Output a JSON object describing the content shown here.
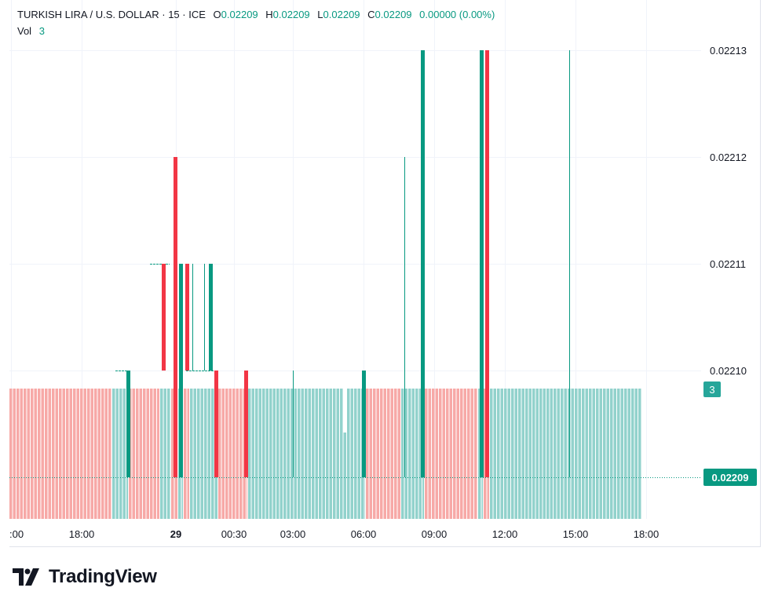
{
  "legend": {
    "symbol": "TURKISH LIRA / U.S. DOLLAR",
    "interval": "15",
    "exchange": "ICE",
    "open_label": "O",
    "open": "0.02209",
    "high_label": "H",
    "high": "0.02209",
    "low_label": "L",
    "low": "0.02209",
    "close_label": "C",
    "close": "0.02209",
    "change": "0.00000 (0.00%)",
    "vol_label": "Vol",
    "vol": "3"
  },
  "brand": {
    "name": "TradingView"
  },
  "colors": {
    "up": "#089981",
    "down": "#f23645",
    "vol_up": "#92d2cc",
    "vol_down": "#f7a9a7",
    "grid": "#f0f3fa",
    "axis_text": "#131722"
  },
  "chart_data": {
    "type": "candlestick",
    "price_axis": {
      "ticks": [
        "0.02210",
        "0.02211",
        "0.02212",
        "0.02213"
      ],
      "ylim": [
        0.02209,
        0.02213
      ]
    },
    "time_axis": {
      "ticks": [
        ":00",
        "18:00",
        "29",
        "00:30",
        "03:00",
        "06:00",
        "09:00",
        "12:00",
        "15:00",
        "18:00"
      ]
    },
    "last_price_label": "0.02209",
    "volume_label": "3",
    "candles": [
      {
        "x": 163.5,
        "o": 0.02209,
        "h": 0.0221,
        "l": 0.02209,
        "c": 0.0221
      },
      {
        "x": 208.5,
        "o": 0.02211,
        "h": 0.02211,
        "l": 0.0221,
        "c": 0.0221
      },
      {
        "x": 223.5,
        "o": 0.02212,
        "h": 0.02212,
        "l": 0.02209,
        "c": 0.02209
      },
      {
        "x": 230.5,
        "o": 0.02209,
        "h": 0.02211,
        "l": 0.02209,
        "c": 0.02211
      },
      {
        "x": 238.5,
        "o": 0.02211,
        "h": 0.02211,
        "l": 0.0221,
        "c": 0.0221
      },
      {
        "x": 268.5,
        "o": 0.0221,
        "h": 0.02211,
        "l": 0.0221,
        "c": 0.02211
      },
      {
        "x": 275.5,
        "o": 0.0221,
        "h": 0.0221,
        "l": 0.02209,
        "c": 0.02209
      },
      {
        "x": 313.5,
        "o": 0.0221,
        "h": 0.0221,
        "l": 0.02209,
        "c": 0.02209
      },
      {
        "x": 463.5,
        "o": 0.02209,
        "h": 0.0221,
        "l": 0.02209,
        "c": 0.0221
      },
      {
        "x": 538.5,
        "o": 0.02209,
        "h": 0.02213,
        "l": 0.02209,
        "c": 0.02213
      },
      {
        "x": 613.5,
        "o": 0.02209,
        "h": 0.02213,
        "l": 0.02209,
        "c": 0.02213
      },
      {
        "x": 620.5,
        "o": 0.02213,
        "h": 0.02213,
        "l": 0.02209,
        "c": 0.02209
      }
    ],
    "wicks": [
      {
        "x": 373.5,
        "h": 0.0221,
        "l": 0.02209
      },
      {
        "x": 515.5,
        "h": 0.02212,
        "l": 0.02209
      },
      {
        "x": 725.5,
        "h": 0.02213,
        "l": 0.02209
      },
      {
        "x": 260.5,
        "h": 0.02211,
        "l": 0.0221
      },
      {
        "x": 245.5,
        "h": 0.02211,
        "l": 0.0221
      }
    ]
  }
}
